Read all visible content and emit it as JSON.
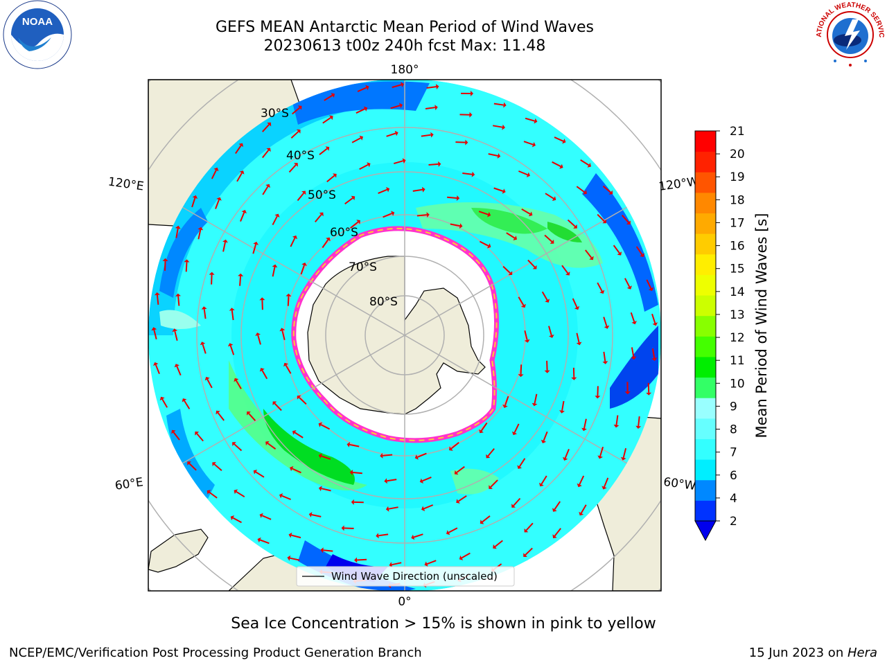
{
  "title": {
    "line1": "GEFS MEAN Antarctic Mean Period of Wind Waves",
    "line2": "20230613 t00z 240h fcst   Max: 11.48"
  },
  "logos": {
    "left": "noaa-logo",
    "right": "national-weather-service-logo",
    "left_text": "NOAA",
    "right_text": "NATIONAL WEATHER SERVICE"
  },
  "map": {
    "projection": "south-polar-stereographic",
    "lon_labels": {
      "top": "180°",
      "bottom": "0°",
      "left_upper": "120°E",
      "left_lower": "60°E",
      "right_upper": "120°W",
      "right_lower": "60°W"
    },
    "lat_labels": [
      "30°S",
      "40°S",
      "50°S",
      "60°S",
      "70°S",
      "80°S"
    ],
    "legend_label": "Wind Wave Direction (unscaled)",
    "colors": {
      "land": "#efedda",
      "ice": "#ffffff",
      "ice_edge": [
        "#ff33cc",
        "#ffcc33"
      ],
      "arrow": "#e60000",
      "grid": "#b0b0b0"
    }
  },
  "colorbar": {
    "label": "Mean Period of Wind Waves [s]",
    "ticks": [
      "2",
      "4",
      "6",
      "7",
      "8",
      "9",
      "10",
      "11",
      "12",
      "13",
      "14",
      "15",
      "16",
      "17",
      "18",
      "19",
      "20",
      "21"
    ],
    "colors": [
      "#0033ff",
      "#0088ff",
      "#00eeff",
      "#33ffff",
      "#66ffff",
      "#99ffff",
      "#33ff66",
      "#00ee00",
      "#44ff00",
      "#88ff00",
      "#ccff00",
      "#eeff00",
      "#ffee00",
      "#ffcc00",
      "#ffaa00",
      "#ff8800",
      "#ff5500",
      "#ff2200",
      "#ff0000"
    ],
    "extend_color": "#0000ee"
  },
  "note": "Sea Ice Concentration > 15% is shown in pink to yellow",
  "footer": {
    "left": "NCEP/EMC/Verification Post Processing Product Generation Branch",
    "right_date": "15 Jun 2023 on ",
    "right_machine": "Hera"
  }
}
